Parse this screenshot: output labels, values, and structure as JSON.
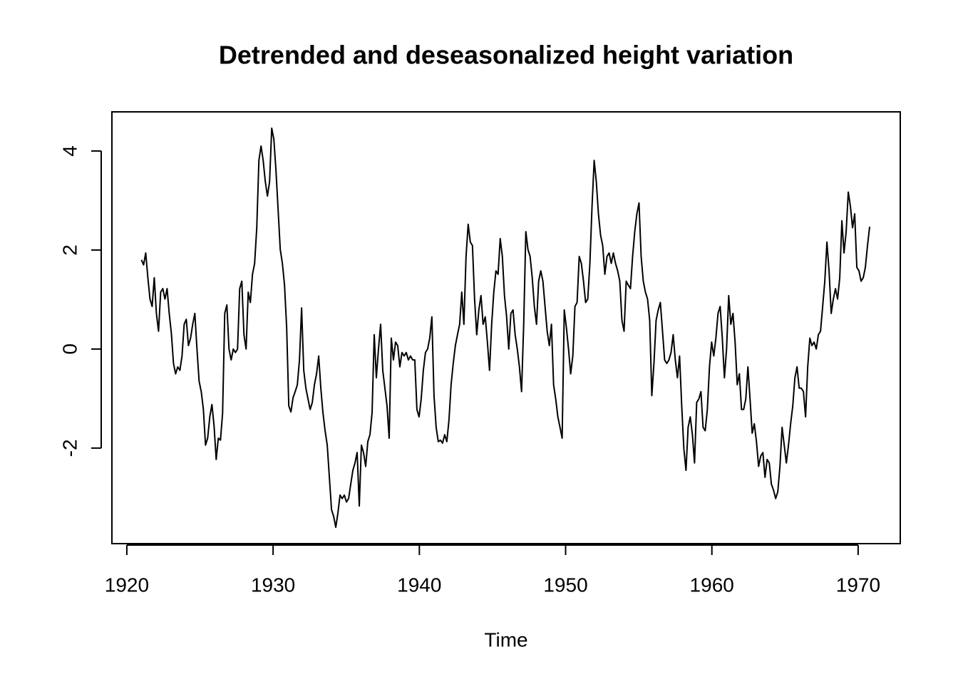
{
  "chart_data": {
    "type": "line",
    "title": "Detrended and deseasonalized height variation",
    "x_label": "Time",
    "xlim": [
      1918.98,
      1972.88
    ],
    "ylim": [
      -3.93,
      4.79
    ],
    "xticks": [
      1920,
      1930,
      1940,
      1950,
      1960,
      1970
    ],
    "yticks": [
      -2,
      0,
      2,
      4
    ],
    "x": [
      1921,
      1921.146,
      1921.292,
      1921.438,
      1921.584,
      1921.73,
      1921.876,
      1922.022,
      1922.168,
      1922.314,
      1922.46,
      1922.606,
      1922.752,
      1922.898,
      1923.044,
      1923.19,
      1923.336,
      1923.482,
      1923.628,
      1923.774,
      1923.92,
      1924.066,
      1924.212,
      1924.358,
      1924.504,
      1924.65,
      1924.796,
      1924.942,
      1925.088,
      1925.234,
      1925.38,
      1925.526,
      1925.672,
      1925.818,
      1925.964,
      1926.11,
      1926.256,
      1926.402,
      1926.548,
      1926.694,
      1926.84,
      1926.986,
      1927.132,
      1927.278,
      1927.424,
      1927.57,
      1927.716,
      1927.862,
      1928.008,
      1928.154,
      1928.3,
      1928.446,
      1928.592,
      1928.738,
      1928.884,
      1929.03,
      1929.176,
      1929.322,
      1929.468,
      1929.614,
      1929.76,
      1929.906,
      1930.052,
      1930.198,
      1930.344,
      1930.49,
      1930.636,
      1930.782,
      1930.928,
      1931.074,
      1931.22,
      1931.366,
      1931.512,
      1931.658,
      1931.804,
      1931.95,
      1932.096,
      1932.242,
      1932.388,
      1932.534,
      1932.68,
      1932.826,
      1932.972,
      1933.118,
      1933.264,
      1933.41,
      1933.556,
      1933.702,
      1933.848,
      1933.994,
      1934.14,
      1934.286,
      1934.432,
      1934.578,
      1934.724,
      1934.87,
      1935.016,
      1935.162,
      1935.308,
      1935.454,
      1935.6,
      1935.746,
      1935.892,
      1936.038,
      1936.184,
      1936.33,
      1936.476,
      1936.622,
      1936.768,
      1936.914,
      1937.06,
      1937.206,
      1937.352,
      1937.498,
      1937.644,
      1937.79,
      1937.936,
      1938.082,
      1938.228,
      1938.374,
      1938.52,
      1938.666,
      1938.812,
      1938.958,
      1939.104,
      1939.25,
      1939.396,
      1939.542,
      1939.688,
      1939.834,
      1939.98,
      1940.126,
      1940.272,
      1940.418,
      1940.564,
      1940.71,
      1940.856,
      1941.002,
      1941.148,
      1941.294,
      1941.44,
      1941.586,
      1941.732,
      1941.878,
      1942.024,
      1942.17,
      1942.316,
      1942.462,
      1942.608,
      1942.754,
      1942.9,
      1943.046,
      1943.192,
      1943.338,
      1943.484,
      1943.63,
      1943.776,
      1943.922,
      1944.068,
      1944.214,
      1944.36,
      1944.506,
      1944.652,
      1944.798,
      1944.944,
      1945.09,
      1945.236,
      1945.382,
      1945.528,
      1945.674,
      1945.82,
      1945.966,
      1946.112,
      1946.258,
      1946.404,
      1946.55,
      1946.696,
      1946.842,
      1946.988,
      1947.134,
      1947.28,
      1947.426,
      1947.572,
      1947.718,
      1947.864,
      1948.01,
      1948.156,
      1948.302,
      1948.448,
      1948.594,
      1948.74,
      1948.886,
      1949.032,
      1949.178,
      1949.324,
      1949.47,
      1949.616,
      1949.762,
      1949.908,
      1950.054,
      1950.2,
      1950.346,
      1950.492,
      1950.638,
      1950.784,
      1950.93,
      1951.076,
      1951.222,
      1951.368,
      1951.514,
      1951.66,
      1951.806,
      1951.952,
      1952.098,
      1952.244,
      1952.39,
      1952.536,
      1952.682,
      1952.828,
      1952.974,
      1953.12,
      1953.266,
      1953.412,
      1953.558,
      1953.704,
      1953.85,
      1953.996,
      1954.142,
      1954.288,
      1954.434,
      1954.58,
      1954.726,
      1954.872,
      1955.018,
      1955.164,
      1955.31,
      1955.456,
      1955.602,
      1955.748,
      1955.894,
      1956.04,
      1956.186,
      1956.332,
      1956.478,
      1956.624,
      1956.77,
      1956.916,
      1957.062,
      1957.208,
      1957.354,
      1957.5,
      1957.646,
      1957.792,
      1957.938,
      1958.084,
      1958.23,
      1958.376,
      1958.522,
      1958.668,
      1958.814,
      1958.96,
      1959.106,
      1959.252,
      1959.398,
      1959.544,
      1959.69,
      1959.836,
      1959.982,
      1960.128,
      1960.274,
      1960.42,
      1960.566,
      1960.712,
      1960.858,
      1961.004,
      1961.15,
      1961.296,
      1961.442,
      1961.588,
      1961.734,
      1961.88,
      1962.026,
      1962.172,
      1962.318,
      1962.464,
      1962.61,
      1962.756,
      1962.902,
      1963.048,
      1963.194,
      1963.34,
      1963.486,
      1963.632,
      1963.778,
      1963.924,
      1964.07,
      1964.216,
      1964.362,
      1964.508,
      1964.654,
      1964.8,
      1964.946,
      1965.092,
      1965.238,
      1965.384,
      1965.53,
      1965.676,
      1965.822,
      1965.968,
      1966.114,
      1966.26,
      1966.406,
      1966.552,
      1966.698,
      1966.844,
      1966.99,
      1967.136,
      1967.282,
      1967.428,
      1967.574,
      1967.72,
      1967.866,
      1968.012,
      1968.158,
      1968.304,
      1968.45,
      1968.596,
      1968.742,
      1968.888,
      1969.034,
      1969.18,
      1969.326,
      1969.472,
      1969.618,
      1969.764,
      1969.91,
      1970.056,
      1970.202,
      1970.348,
      1970.494,
      1970.64,
      1970.786
    ],
    "series": [
      {
        "color": "#000000",
        "values": [
          1.8,
          1.7,
          1.94,
          1.44,
          1.01,
          0.86,
          1.44,
          0.72,
          0.36,
          1.15,
          1.22,
          1.01,
          1.22,
          0.72,
          0.32,
          -0.29,
          -0.5,
          -0.36,
          -0.43,
          -0.14,
          0.5,
          0.6,
          0.07,
          0.22,
          0.5,
          0.72,
          0.0,
          -0.65,
          -0.86,
          -1.22,
          -1.94,
          -1.8,
          -1.37,
          -1.12,
          -1.55,
          -2.23,
          -1.8,
          -1.84,
          -1.29,
          0.72,
          0.89,
          0.0,
          -0.22,
          0.0,
          -0.07,
          0.0,
          1.22,
          1.37,
          0.29,
          0.0,
          1.15,
          0.94,
          1.51,
          1.73,
          2.45,
          3.81,
          4.1,
          3.81,
          3.38,
          3.09,
          3.38,
          4.46,
          4.24,
          3.6,
          2.81,
          2.01,
          1.73,
          1.29,
          0.43,
          -1.15,
          -1.27,
          -0.98,
          -0.86,
          -0.72,
          -0.22,
          0.83,
          -0.43,
          -0.79,
          -1.01,
          -1.22,
          -1.08,
          -0.72,
          -0.5,
          -0.14,
          -0.79,
          -1.29,
          -1.65,
          -1.94,
          -2.59,
          -3.24,
          -3.38,
          -3.6,
          -3.31,
          -2.95,
          -3.02,
          -2.95,
          -3.09,
          -3.02,
          -2.73,
          -2.45,
          -2.3,
          -2.09,
          -3.17,
          -1.94,
          -2.09,
          -2.37,
          -1.87,
          -1.73,
          -1.29,
          0.29,
          -0.58,
          0.0,
          0.5,
          -0.43,
          -0.79,
          -1.15,
          -1.8,
          0.22,
          -0.22,
          0.14,
          0.07,
          -0.36,
          -0.07,
          -0.14,
          -0.07,
          -0.22,
          -0.14,
          -0.22,
          -0.22,
          -1.22,
          -1.37,
          -1.01,
          -0.43,
          -0.07,
          0.0,
          0.22,
          0.65,
          -0.94,
          -1.58,
          -1.87,
          -1.84,
          -1.9,
          -1.73,
          -1.87,
          -1.44,
          -0.72,
          -0.29,
          0.07,
          0.29,
          0.5,
          1.15,
          0.5,
          1.87,
          2.52,
          2.16,
          2.09,
          1.01,
          0.29,
          0.79,
          1.08,
          0.5,
          0.65,
          0.14,
          -0.43,
          0.5,
          1.15,
          1.58,
          1.51,
          2.23,
          1.87,
          1.08,
          0.65,
          0.0,
          0.72,
          0.79,
          0.29,
          0.0,
          -0.36,
          -0.86,
          0.5,
          2.37,
          2.01,
          1.87,
          1.44,
          0.86,
          0.5,
          1.37,
          1.58,
          1.37,
          0.86,
          0.36,
          0.07,
          0.5,
          -0.72,
          -1.01,
          -1.37,
          -1.58,
          -1.8,
          0.79,
          0.43,
          0.0,
          -0.5,
          -0.14,
          0.86,
          0.94,
          1.87,
          1.73,
          1.37,
          0.94,
          1.01,
          1.73,
          2.88,
          3.81,
          3.38,
          2.73,
          2.3,
          2.09,
          1.51,
          1.87,
          1.94,
          1.73,
          1.94,
          1.73,
          1.58,
          1.37,
          0.58,
          0.36,
          1.37,
          1.29,
          1.22,
          1.87,
          2.37,
          2.73,
          2.95,
          1.87,
          1.37,
          1.15,
          1.01,
          0.58,
          -0.94,
          -0.29,
          0.58,
          0.79,
          0.94,
          0.36,
          -0.22,
          -0.29,
          -0.22,
          -0.07,
          0.29,
          -0.22,
          -0.58,
          -0.14,
          -1.15,
          -2.01,
          -2.45,
          -1.58,
          -1.37,
          -1.73,
          -2.3,
          -1.08,
          -1.01,
          -0.86,
          -1.58,
          -1.65,
          -1.22,
          -0.36,
          0.14,
          -0.14,
          0.22,
          0.72,
          0.86,
          0.22,
          -0.58,
          0.0,
          1.08,
          0.5,
          0.72,
          0.14,
          -0.72,
          -0.5,
          -1.22,
          -1.22,
          -1.01,
          -0.36,
          -1.01,
          -1.7,
          -1.51,
          -1.87,
          -2.37,
          -2.16,
          -2.09,
          -2.59,
          -2.23,
          -2.3,
          -2.73,
          -2.85,
          -3.02,
          -2.88,
          -2.37,
          -1.58,
          -1.94,
          -2.3,
          -1.94,
          -1.51,
          -1.15,
          -0.58,
          -0.36,
          -0.79,
          -0.79,
          -0.86,
          -1.37,
          -0.36,
          0.22,
          0.07,
          0.14,
          0.0,
          0.29,
          0.36,
          0.86,
          1.37,
          2.16,
          1.58,
          0.72,
          1.01,
          1.22,
          1.01,
          1.44,
          2.59,
          1.94,
          2.37,
          3.17,
          2.88,
          2.45,
          2.73,
          1.65,
          1.58,
          1.37,
          1.44,
          1.65,
          2.09,
          2.47
        ]
      }
    ]
  }
}
